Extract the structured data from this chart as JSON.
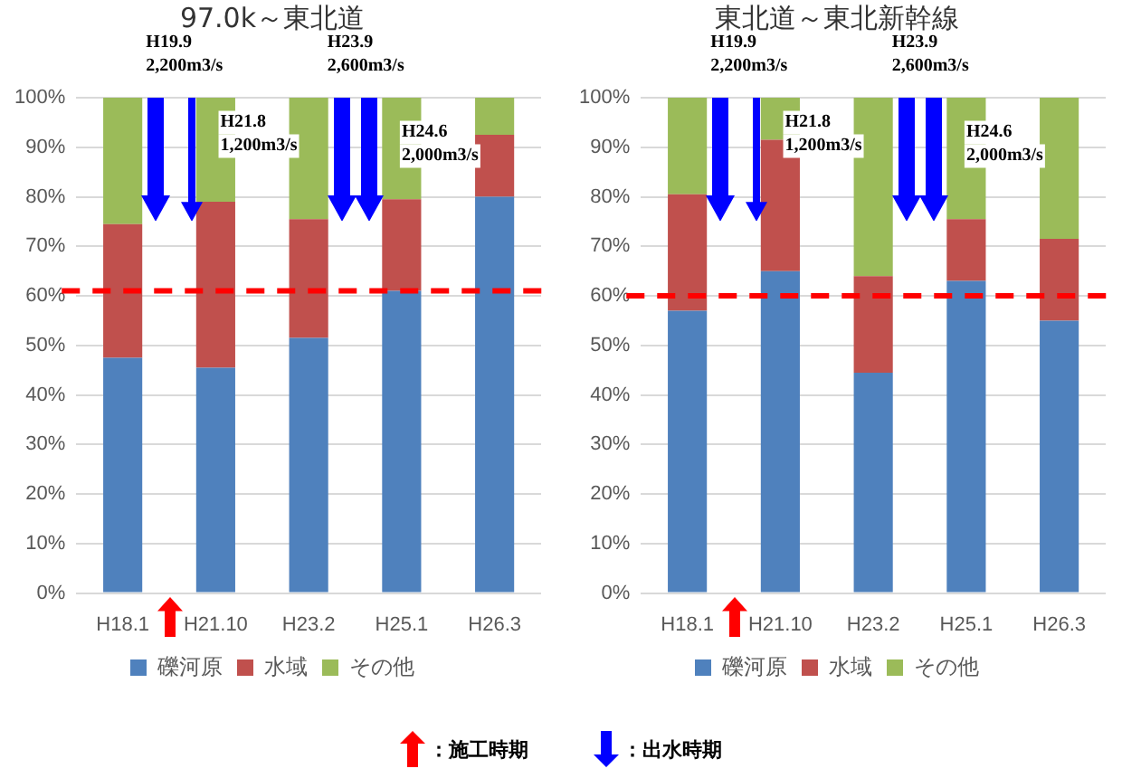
{
  "chart_data": [
    {
      "type": "bar",
      "title": "97.0k～東北道",
      "categories": [
        "H18.1",
        "H21.10",
        "H23.2",
        "H25.1",
        "H26.3"
      ],
      "stacked": true,
      "ylim": [
        0,
        100
      ],
      "yticks": [
        {
          "value": 0,
          "label": "0%"
        },
        {
          "value": 10,
          "label": "10%"
        },
        {
          "value": 20,
          "label": "20%"
        },
        {
          "value": 30,
          "label": "30%"
        },
        {
          "value": 40,
          "label": "40%"
        },
        {
          "value": 50,
          "label": "50%"
        },
        {
          "value": 60,
          "label": "60%"
        },
        {
          "value": 70,
          "label": "70%"
        },
        {
          "value": 80,
          "label": "80%"
        },
        {
          "value": 90,
          "label": "90%"
        },
        {
          "value": 100,
          "label": "100%"
        }
      ],
      "grid": "y",
      "legend": "bottom",
      "series": [
        {
          "name": "礫河原",
          "color": "#4f81bd",
          "values": [
            47.5,
            45.5,
            51.5,
            61,
            80
          ]
        },
        {
          "name": "水域",
          "color": "#c0504d",
          "values": [
            27,
            33.5,
            24,
            18.5,
            12.5
          ]
        },
        {
          "name": "その他",
          "color": "#9bbb59",
          "values": [
            25.5,
            21,
            24.5,
            20.5,
            7.5
          ]
        }
      ],
      "ref_lines": [
        {
          "axis": "y",
          "value": 61,
          "color": "#ff0000",
          "line_style": "dashed"
        }
      ],
      "annotations": [
        "H19.9 2,200m3/s",
        "H21.8 1,200m3/s",
        "H23.9 2,600m3/s",
        "H24.6 2,000m3/s",
        "：施工時期",
        "：出水時期"
      ]
    },
    {
      "type": "bar",
      "title": "東北道～東北新幹線",
      "categories": [
        "H18.1",
        "H21.10",
        "H23.2",
        "H25.1",
        "H26.3"
      ],
      "stacked": true,
      "ylim": [
        0,
        100
      ],
      "yticks": [
        {
          "value": 0,
          "label": "0%"
        },
        {
          "value": 10,
          "label": "10%"
        },
        {
          "value": 20,
          "label": "20%"
        },
        {
          "value": 30,
          "label": "30%"
        },
        {
          "value": 40,
          "label": "40%"
        },
        {
          "value": 50,
          "label": "50%"
        },
        {
          "value": 60,
          "label": "60%"
        },
        {
          "value": 70,
          "label": "70%"
        },
        {
          "value": 80,
          "label": "80%"
        },
        {
          "value": 90,
          "label": "90%"
        },
        {
          "value": 100,
          "label": "100%"
        }
      ],
      "grid": "y",
      "legend": "bottom",
      "series": [
        {
          "name": "礫河原",
          "color": "#4f81bd",
          "values": [
            57,
            65,
            44.5,
            63,
            55
          ]
        },
        {
          "name": "水域",
          "color": "#c0504d",
          "values": [
            23.5,
            26.5,
            19.5,
            12.5,
            16.5
          ]
        },
        {
          "name": "その他",
          "color": "#9bbb59",
          "values": [
            19.5,
            8.5,
            36,
            24.5,
            28.5
          ]
        }
      ],
      "ref_lines": [
        {
          "axis": "y",
          "value": 60,
          "color": "#ff0000",
          "line_style": "dashed"
        }
      ],
      "annotations": [
        "H19.9 2,200m3/s",
        "H21.8 1,200m3/s",
        "H23.9 2,600m3/s",
        "H24.6 2,000m3/s"
      ]
    }
  ]
}
